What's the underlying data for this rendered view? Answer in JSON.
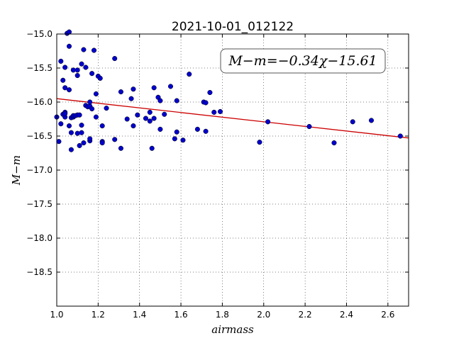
{
  "chart_data": {
    "type": "scatter",
    "title": "2021-10-01_012122",
    "xlabel": "airmass",
    "ylabel": "M−m",
    "xlim": [
      1.0,
      2.7
    ],
    "ylim": [
      -19.0,
      -15.0
    ],
    "y_inverted": true,
    "grid": true,
    "x_ticks": [
      {
        "value": 1.0,
        "label": "1.0"
      },
      {
        "value": 1.2,
        "label": "1.2"
      },
      {
        "value": 1.4,
        "label": "1.4"
      },
      {
        "value": 1.6,
        "label": "1.6"
      },
      {
        "value": 1.8,
        "label": "1.8"
      },
      {
        "value": 2.0,
        "label": "2.0"
      },
      {
        "value": 2.2,
        "label": "2.2"
      },
      {
        "value": 2.4,
        "label": "2.4"
      },
      {
        "value": 2.6,
        "label": "2.6"
      }
    ],
    "y_ticks": [
      {
        "value": -15.0,
        "label": "−15.0"
      },
      {
        "value": -15.5,
        "label": "−15.5"
      },
      {
        "value": -16.0,
        "label": "−16.0"
      },
      {
        "value": -16.5,
        "label": "−16.5"
      },
      {
        "value": -17.0,
        "label": "−17.0"
      },
      {
        "value": -17.5,
        "label": "−17.5"
      },
      {
        "value": -18.0,
        "label": "−18.0"
      },
      {
        "value": -18.5,
        "label": "−18.5"
      }
    ],
    "annotation": "M−m=−0.34χ−15.61",
    "fit_line": {
      "slope": -0.34,
      "intercept": -15.61,
      "color": "#cc0000"
    },
    "point_color": "#0000cc",
    "points": [
      {
        "x": 1.0,
        "y": -16.22
      },
      {
        "x": 1.01,
        "y": -16.58
      },
      {
        "x": 1.02,
        "y": -15.4
      },
      {
        "x": 1.02,
        "y": -16.32
      },
      {
        "x": 1.03,
        "y": -15.68
      },
      {
        "x": 1.03,
        "y": -16.18
      },
      {
        "x": 1.04,
        "y": -15.79
      },
      {
        "x": 1.04,
        "y": -16.15
      },
      {
        "x": 1.04,
        "y": -16.22
      },
      {
        "x": 1.04,
        "y": -16.17
      },
      {
        "x": 1.04,
        "y": -15.49
      },
      {
        "x": 1.05,
        "y": -14.99
      },
      {
        "x": 1.06,
        "y": -14.97
      },
      {
        "x": 1.06,
        "y": -15.18
      },
      {
        "x": 1.06,
        "y": -15.82
      },
      {
        "x": 1.06,
        "y": -16.35
      },
      {
        "x": 1.07,
        "y": -16.7
      },
      {
        "x": 1.07,
        "y": -16.45
      },
      {
        "x": 1.07,
        "y": -16.23
      },
      {
        "x": 1.08,
        "y": -16.22
      },
      {
        "x": 1.08,
        "y": -15.53
      },
      {
        "x": 1.08,
        "y": -16.2
      },
      {
        "x": 1.09,
        "y": -16.2
      },
      {
        "x": 1.1,
        "y": -15.61
      },
      {
        "x": 1.1,
        "y": -16.19
      },
      {
        "x": 1.1,
        "y": -16.46
      },
      {
        "x": 1.1,
        "y": -15.53
      },
      {
        "x": 1.11,
        "y": -16.19
      },
      {
        "x": 1.11,
        "y": -16.64
      },
      {
        "x": 1.12,
        "y": -16.34
      },
      {
        "x": 1.12,
        "y": -16.45
      },
      {
        "x": 1.12,
        "y": -15.44
      },
      {
        "x": 1.13,
        "y": -15.23
      },
      {
        "x": 1.13,
        "y": -16.6
      },
      {
        "x": 1.14,
        "y": -16.05
      },
      {
        "x": 1.14,
        "y": -15.49
      },
      {
        "x": 1.15,
        "y": -16.07
      },
      {
        "x": 1.16,
        "y": -16.57
      },
      {
        "x": 1.16,
        "y": -16.06
      },
      {
        "x": 1.16,
        "y": -16.0
      },
      {
        "x": 1.16,
        "y": -16.54
      },
      {
        "x": 1.17,
        "y": -16.1
      },
      {
        "x": 1.17,
        "y": -15.58
      },
      {
        "x": 1.18,
        "y": -15.24
      },
      {
        "x": 1.19,
        "y": -16.22
      },
      {
        "x": 1.19,
        "y": -15.88
      },
      {
        "x": 1.2,
        "y": -15.62
      },
      {
        "x": 1.21,
        "y": -15.65
      },
      {
        "x": 1.22,
        "y": -16.58
      },
      {
        "x": 1.22,
        "y": -16.6
      },
      {
        "x": 1.22,
        "y": -16.35
      },
      {
        "x": 1.24,
        "y": -16.09
      },
      {
        "x": 1.28,
        "y": -15.36
      },
      {
        "x": 1.28,
        "y": -16.55
      },
      {
        "x": 1.31,
        "y": -16.68
      },
      {
        "x": 1.31,
        "y": -15.85
      },
      {
        "x": 1.34,
        "y": -16.25
      },
      {
        "x": 1.36,
        "y": -15.95
      },
      {
        "x": 1.37,
        "y": -16.35
      },
      {
        "x": 1.37,
        "y": -15.81
      },
      {
        "x": 1.39,
        "y": -16.19
      },
      {
        "x": 1.43,
        "y": -16.24
      },
      {
        "x": 1.45,
        "y": -16.15
      },
      {
        "x": 1.45,
        "y": -16.28
      },
      {
        "x": 1.46,
        "y": -16.68
      },
      {
        "x": 1.47,
        "y": -16.24
      },
      {
        "x": 1.47,
        "y": -15.79
      },
      {
        "x": 1.49,
        "y": -15.93
      },
      {
        "x": 1.5,
        "y": -16.4
      },
      {
        "x": 1.5,
        "y": -15.98
      },
      {
        "x": 1.52,
        "y": -16.18
      },
      {
        "x": 1.55,
        "y": -15.77
      },
      {
        "x": 1.57,
        "y": -16.54
      },
      {
        "x": 1.58,
        "y": -15.98
      },
      {
        "x": 1.58,
        "y": -16.44
      },
      {
        "x": 1.61,
        "y": -16.56
      },
      {
        "x": 1.64,
        "y": -15.59
      },
      {
        "x": 1.68,
        "y": -16.4
      },
      {
        "x": 1.71,
        "y": -16.0
      },
      {
        "x": 1.72,
        "y": -16.43
      },
      {
        "x": 1.72,
        "y": -16.01
      },
      {
        "x": 1.74,
        "y": -15.86
      },
      {
        "x": 1.76,
        "y": -16.15
      },
      {
        "x": 1.79,
        "y": -16.14
      },
      {
        "x": 1.98,
        "y": -16.59
      },
      {
        "x": 2.02,
        "y": -16.29
      },
      {
        "x": 2.22,
        "y": -16.36
      },
      {
        "x": 2.34,
        "y": -16.6
      },
      {
        "x": 2.43,
        "y": -16.29
      },
      {
        "x": 2.52,
        "y": -16.27
      },
      {
        "x": 2.66,
        "y": -16.5
      }
    ]
  }
}
